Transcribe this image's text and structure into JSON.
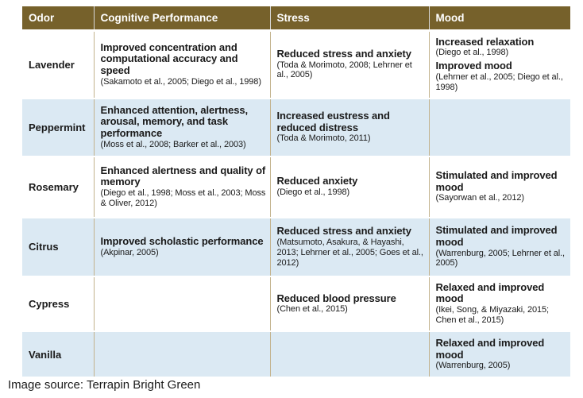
{
  "table": {
    "headers": [
      "Odor",
      "Cognitive Performance",
      "Stress",
      "Mood"
    ],
    "rows": [
      {
        "odor": "Lavender",
        "cognitive": [
          {
            "effect": "Improved concentration and computational accuracy and speed",
            "citation": "(Sakamoto et al., 2005; Diego et al., 1998)"
          }
        ],
        "stress": [
          {
            "effect": "Reduced stress and anxiety",
            "citation": "(Toda & Morimoto, 2008; Lehrner et al., 2005)"
          }
        ],
        "mood": [
          {
            "effect": "Increased relaxation",
            "citation": "(Diego et al., 1998)"
          },
          {
            "effect": "Improved mood",
            "citation": "(Lehrner et al., 2005; Diego et al., 1998)"
          }
        ]
      },
      {
        "odor": "Peppermint",
        "cognitive": [
          {
            "effect": "Enhanced attention, alertness, arousal, memory, and task performance",
            "citation": "(Moss et al., 2008; Barker et al., 2003)"
          }
        ],
        "stress": [
          {
            "effect": "Increased eustress and reduced distress",
            "citation": "(Toda & Morimoto, 2011)"
          }
        ],
        "mood": []
      },
      {
        "odor": "Rosemary",
        "cognitive": [
          {
            "effect": "Enhanced alertness and quality of memory",
            "citation": "(Diego et al., 1998; Moss et al., 2003; Moss & Oliver, 2012)"
          }
        ],
        "stress": [
          {
            "effect": "Reduced anxiety",
            "citation": "(Diego et al., 1998)"
          }
        ],
        "mood": [
          {
            "effect": "Stimulated and improved mood",
            "citation": "(Sayorwan et al., 2012)"
          }
        ]
      },
      {
        "odor": "Citrus",
        "cognitive": [
          {
            "effect": "Improved scholastic performance",
            "citation": "(Akpinar, 2005)"
          }
        ],
        "stress": [
          {
            "effect": "Reduced stress and anxiety",
            "citation": "(Matsumoto, Asakura, & Hayashi, 2013; Lehrner et al., 2005; Goes et al., 2012)"
          }
        ],
        "mood": [
          {
            "effect": "Stimulated and improved mood",
            "citation": "(Warrenburg, 2005; Lehrner et al., 2005)"
          }
        ]
      },
      {
        "odor": "Cypress",
        "cognitive": [],
        "stress": [
          {
            "effect": "Reduced blood pressure",
            "citation": "(Chen et al., 2015)"
          }
        ],
        "mood": [
          {
            "effect": "Relaxed and improved mood",
            "citation": "(Ikei, Song, & Miyazaki, 2015; Chen et al., 2015)"
          }
        ]
      },
      {
        "odor": "Vanilla",
        "cognitive": [],
        "stress": [],
        "mood": [
          {
            "effect": "Relaxed and improved mood",
            "citation": "(Warrenburg, 2005)"
          }
        ]
      }
    ]
  },
  "footer": {
    "caption": "Image source: Terrapin Bright Green"
  },
  "colors": {
    "header_bg": "#76612b",
    "header_text": "#ffffff",
    "alt_row_bg": "#dbe9f3",
    "divider": "#c2b28c",
    "body_text": "#1a1a1a"
  }
}
